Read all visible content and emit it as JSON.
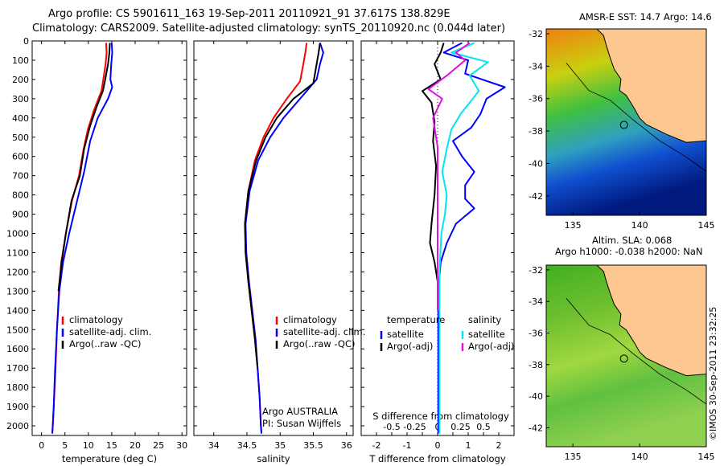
{
  "header": {
    "line1": "Argo profile: CS 5901611_163 19-Sep-2011 20110921_91 37.617S 138.829E",
    "line2": "Climatology: CARS2009. Satellite-adjusted climatology: synTS_20110920.nc (0.044d later)"
  },
  "depth_ticks": [
    0,
    100,
    200,
    300,
    400,
    500,
    600,
    700,
    800,
    900,
    1000,
    1100,
    1200,
    1300,
    1400,
    1500,
    1600,
    1700,
    1800,
    1900,
    2000
  ],
  "colors": {
    "climatology": "#ff0000",
    "satellite": "#0000ff",
    "argo": "#000000",
    "sat_s": "#00e5ee",
    "argo_s": "#e010e0"
  },
  "chart_data": [
    {
      "type": "line",
      "id": "temperature",
      "xlabel": "temperature (deg C)",
      "xlim": [
        -2,
        31
      ],
      "ylim": [
        2050,
        0
      ],
      "xticks": [
        0,
        5,
        10,
        15,
        20,
        25,
        30
      ],
      "legend": {
        "items": [
          "climatology",
          "satellite-adj. clim.",
          "Argo(..raw -QC)"
        ]
      },
      "series": [
        {
          "name": "climatology",
          "color": "#ff0000",
          "x": [
            13.8,
            13.9,
            13.7,
            13.2,
            12.8,
            11.2,
            9.9,
            9.0,
            8.0,
            6.5,
            5.2,
            4.2,
            3.7,
            3.3,
            3.0,
            2.6,
            2.4,
            2.3
          ],
          "y": [
            10,
            60,
            120,
            200,
            260,
            360,
            460,
            560,
            700,
            830,
            1000,
            1150,
            1300,
            1500,
            1700,
            1900,
            2000,
            2040
          ]
        },
        {
          "name": "satellite-adj. clim.",
          "color": "#0000ff",
          "x": [
            15.0,
            15.1,
            14.9,
            14.7,
            15.1,
            14.2,
            12.0,
            10.4,
            9.1,
            7.6,
            5.9,
            4.6,
            3.8,
            3.3,
            2.9,
            2.6,
            2.4,
            2.3
          ],
          "y": [
            10,
            60,
            120,
            200,
            240,
            300,
            400,
            520,
            680,
            830,
            1000,
            1150,
            1300,
            1500,
            1700,
            1900,
            2000,
            2040
          ]
        },
        {
          "name": "Argo(..raw -QC)",
          "color": "#000000",
          "x": [
            14.6,
            14.5,
            14.2,
            13.6,
            13.1,
            11.8,
            10.4,
            9.1,
            8.2,
            6.4,
            5.2,
            4.3,
            3.6
          ],
          "y": [
            10,
            60,
            120,
            200,
            260,
            340,
            440,
            560,
            700,
            830,
            1000,
            1150,
            1300
          ]
        }
      ]
    },
    {
      "type": "line",
      "id": "salinity",
      "xlabel": "salinity",
      "xlim": [
        33.7,
        36.1
      ],
      "ylim": [
        2050,
        0
      ],
      "xticks": [
        34,
        34.5,
        35,
        35.5,
        36
      ],
      "legend": {
        "items": [
          "climatology",
          "satellite-adj. clim.",
          "Argo(..raw -QC)"
        ]
      },
      "annotations": [
        "Argo AUSTRALIA",
        "PI: Susan Wijffels"
      ],
      "series": [
        {
          "name": "climatology",
          "color": "#ff0000",
          "x": [
            35.4,
            35.38,
            35.35,
            35.3,
            35.1,
            34.9,
            34.75,
            34.62,
            34.52,
            34.47,
            34.48,
            34.52,
            34.57,
            34.62,
            34.66,
            34.69,
            34.71,
            34.72
          ],
          "y": [
            10,
            60,
            120,
            210,
            300,
            400,
            500,
            620,
            780,
            950,
            1100,
            1250,
            1400,
            1550,
            1700,
            1850,
            2000,
            2040
          ]
        },
        {
          "name": "satellite-adj. clim.",
          "color": "#0000ff",
          "x": [
            35.6,
            35.65,
            35.6,
            35.55,
            35.3,
            35.05,
            34.85,
            34.67,
            34.54,
            34.48,
            34.49,
            34.53,
            34.58,
            34.63,
            34.66,
            34.69,
            34.71,
            34.72
          ],
          "y": [
            10,
            60,
            120,
            200,
            300,
            400,
            500,
            620,
            780,
            950,
            1100,
            1250,
            1400,
            1550,
            1700,
            1850,
            2000,
            2040
          ]
        },
        {
          "name": "Argo(..raw -QC)",
          "color": "#000000",
          "x": [
            35.6,
            35.58,
            35.55,
            35.5,
            35.2,
            34.95,
            34.78,
            34.64,
            34.52,
            34.47,
            34.48,
            34.52,
            34.57,
            34.62,
            34.66
          ],
          "y": [
            10,
            60,
            120,
            220,
            300,
            400,
            500,
            620,
            780,
            950,
            1100,
            1250,
            1400,
            1550,
            1700
          ]
        }
      ]
    },
    {
      "type": "line",
      "id": "difference",
      "xlabel": "T difference from climatology",
      "xlabel2": "S difference from climatology",
      "xlim": [
        -2.5,
        2.5
      ],
      "ylim": [
        2050,
        0
      ],
      "xticks": [
        -2,
        -1.5,
        -1,
        -0.5,
        0,
        0.5,
        1,
        1.5,
        2
      ],
      "xtick_labels": [
        "-2",
        "",
        "-1",
        "",
        "0",
        "",
        "1",
        "",
        "2"
      ],
      "s_xticks": [
        -0.5,
        -0.25,
        0,
        0.25,
        0.5
      ],
      "s_xtick_labels": [
        "-0.5",
        "-0.25",
        "0",
        "0.25",
        "0.5"
      ],
      "legend": {
        "headers": [
          "temperature",
          "salinity"
        ],
        "left_items": [
          "satellite",
          "Argo(-adj)"
        ],
        "right_items": [
          "satellite",
          "Argo(-adj)"
        ]
      },
      "series": [
        {
          "name": "T satellite",
          "color": "#0000ff",
          "x": [
            0.8,
            0.2,
            1.0,
            0.9,
            2.2,
            1.6,
            1.4,
            1.1,
            0.5,
            0.8,
            1.2,
            0.9,
            0.9,
            1.2,
            0.6,
            0.3,
            0.1,
            0.02,
            0.02,
            0.02
          ],
          "y": [
            10,
            60,
            100,
            170,
            240,
            300,
            380,
            450,
            520,
            600,
            680,
            750,
            820,
            870,
            950,
            1050,
            1150,
            1300,
            1600,
            2040
          ]
        },
        {
          "name": "T Argo(-adj)",
          "color": "#000000",
          "x": [
            0.2,
            0.1,
            -0.1,
            0.1,
            -0.5,
            -0.2,
            -0.1,
            -0.15,
            -0.05,
            -0.1,
            -0.2,
            -0.25,
            -0.1,
            0.0,
            0.0
          ],
          "y": [
            10,
            60,
            120,
            200,
            260,
            320,
            420,
            520,
            650,
            800,
            950,
            1050,
            1150,
            1250,
            1300
          ]
        },
        {
          "name": "S satellite",
          "color": "#00e5ee",
          "x": [
            0.4,
            0.15,
            0.55,
            0.35,
            0.45,
            0.25,
            0.15,
            0.1,
            0.05,
            0.1,
            0.08,
            0.04,
            0.02,
            0.02,
            0.02
          ],
          "y": [
            10,
            60,
            110,
            180,
            260,
            380,
            460,
            560,
            680,
            800,
            900,
            1000,
            1200,
            1500,
            2040
          ]
        },
        {
          "name": "S Argo(-adj)",
          "color": "#e010e0",
          "x": [
            0.35,
            0.2,
            0.3,
            0.1,
            -0.1,
            0.05,
            -0.05,
            0.0,
            0.0,
            0.0,
            0.0
          ],
          "y": [
            10,
            60,
            100,
            180,
            250,
            300,
            400,
            550,
            800,
            1100,
            1400
          ]
        }
      ]
    }
  ],
  "maps": [
    {
      "title": "AMSR-E SST: 14.7  Argo: 14.6",
      "xlim": [
        133,
        145
      ],
      "ylim": [
        -43.2,
        -31.7
      ],
      "xticks": [
        135,
        140,
        145
      ],
      "yticks": [
        -32,
        -34,
        -36,
        -38,
        -40,
        -42
      ],
      "marker": [
        138.83,
        -37.62
      ]
    },
    {
      "title1": "Altim. SLA: 0.068",
      "title2": "Argo h1000: -0.038 h2000: NaN",
      "xlim": [
        133,
        145
      ],
      "ylim": [
        -43.2,
        -31.7
      ],
      "xticks": [
        135,
        140,
        145
      ],
      "yticks": [
        -32,
        -34,
        -36,
        -38,
        -40,
        -42
      ],
      "marker": [
        138.83,
        -37.62
      ]
    }
  ],
  "stamp": "©IMOS 30-Sep-2011 23:32:25"
}
